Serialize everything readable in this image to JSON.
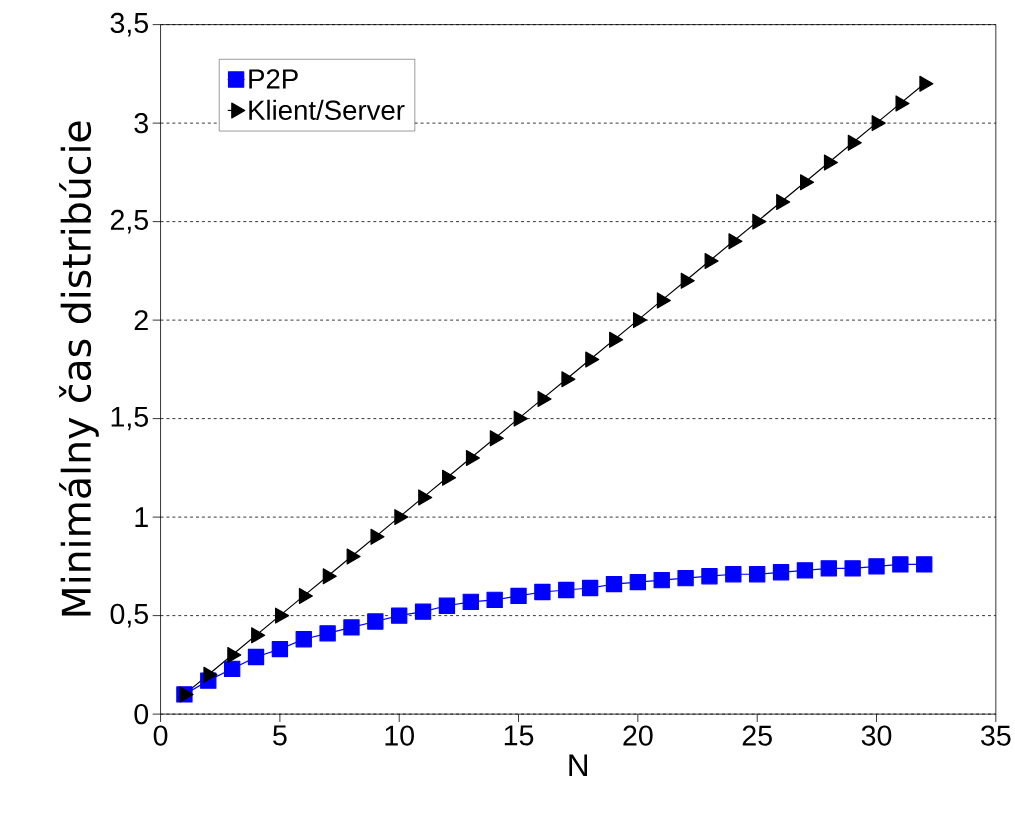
{
  "chart_data": {
    "type": "line",
    "xlabel": "N",
    "ylabel": "Minimálny čas distribúcie",
    "xlim": [
      0,
      35
    ],
    "ylim": [
      0,
      3.5
    ],
    "xticks": [
      0,
      5,
      10,
      15,
      20,
      25,
      30,
      35
    ],
    "yticks": [
      0,
      {
        "value": 0.5,
        "label": "0,5"
      },
      1,
      {
        "value": 1.5,
        "label": "1,5"
      },
      2,
      {
        "value": 2.5,
        "label": "2,5"
      },
      3,
      {
        "value": 3.5,
        "label": "3,5"
      }
    ],
    "grid": "y",
    "legend": "top left",
    "line_style": "solid",
    "x": [
      1,
      2,
      3,
      4,
      5,
      6,
      7,
      8,
      9,
      10,
      11,
      12,
      13,
      14,
      15,
      16,
      17,
      18,
      19,
      20,
      21,
      22,
      23,
      24,
      25,
      26,
      27,
      28,
      29,
      30,
      31,
      32
    ],
    "series": [
      {
        "name": "P2P",
        "color": "#0000ff",
        "marker": "square",
        "values": [
          0.1,
          0.17,
          0.23,
          0.29,
          0.33,
          0.38,
          0.41,
          0.44,
          0.47,
          0.5,
          0.52,
          0.55,
          0.57,
          0.58,
          0.6,
          0.62,
          0.63,
          0.64,
          0.66,
          0.67,
          0.68,
          0.69,
          0.7,
          0.71,
          0.71,
          0.72,
          0.73,
          0.74,
          0.74,
          0.75,
          0.76,
          0.76
        ]
      },
      {
        "name": "Klient/Server",
        "color": "#000000",
        "marker": "triangle",
        "values": [
          0.1,
          0.2,
          0.3,
          0.4,
          0.5,
          0.6,
          0.7,
          0.8,
          0.9,
          1.0,
          1.1,
          1.2,
          1.3,
          1.4,
          1.5,
          1.6,
          1.7,
          1.8,
          1.9,
          2.0,
          2.1,
          2.2,
          2.3,
          2.4,
          2.5,
          2.6,
          2.7,
          2.8,
          2.9,
          3.0,
          3.1,
          3.2
        ]
      }
    ]
  }
}
